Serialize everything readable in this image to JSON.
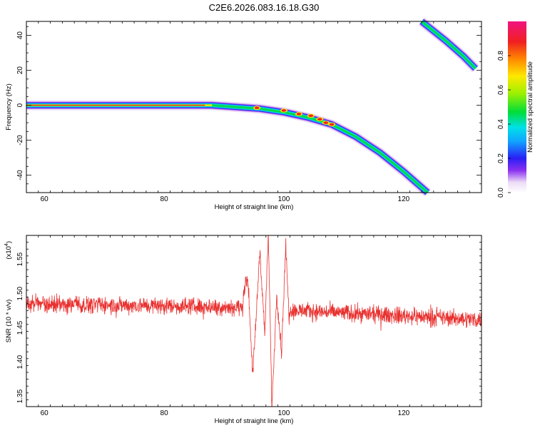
{
  "chart_data": [
    {
      "type": "heatmap",
      "title": "C2E6.2026.083.16.18.G30",
      "xlabel": "Height of straight line (km)",
      "ylabel": "Frequency (Hz)",
      "xlim": [
        57,
        133
      ],
      "ylim": [
        -50,
        48
      ],
      "xticks": [
        60,
        80,
        100,
        120
      ],
      "yticks": [
        -40,
        -20,
        0,
        20,
        40
      ],
      "colorbar": {
        "label": "Normalized spectral amplitude",
        "range": [
          0,
          1
        ],
        "ticks": [
          "0.0",
          "0.2",
          "0.4",
          "0.6",
          "0.8"
        ],
        "tick_values": [
          0,
          0.2,
          0.4,
          0.6,
          0.8
        ]
      },
      "ridges": [
        {
          "name": "main-trace",
          "points": [
            [
              57,
              0
            ],
            [
              88,
              0
            ],
            [
              92,
              -1
            ],
            [
              96,
              -2
            ],
            [
              100,
              -4
            ],
            [
              104,
              -7
            ],
            [
              108,
              -11
            ],
            [
              112,
              -18
            ],
            [
              116,
              -27
            ],
            [
              120,
              -38
            ],
            [
              124,
              -50
            ]
          ]
        },
        {
          "name": "aliased-trace",
          "points": [
            [
              123,
              48
            ],
            [
              127,
              37
            ],
            [
              130,
              28
            ],
            [
              132,
              21
            ]
          ]
        }
      ],
      "peaks": [
        [
          79,
          0
        ],
        [
          95.5,
          -1.5
        ],
        [
          100,
          -3
        ],
        [
          102.5,
          -5
        ],
        [
          104.5,
          -6
        ],
        [
          106,
          -8
        ],
        [
          107,
          -10
        ],
        [
          108,
          -11
        ]
      ]
    },
    {
      "type": "line",
      "title": "",
      "xlabel": "Height of straight line (km)",
      "ylabel": "SNR (10 * v/v)",
      "yscale_label": "(x10",
      "yscale_exp": "4",
      "yscale_close": ")",
      "xlim": [
        57,
        133
      ],
      "ylim": [
        1.335,
        1.585
      ],
      "xticks": [
        60,
        80,
        100,
        120
      ],
      "yticks": [
        "1.35",
        "1.40",
        "1.45",
        "1.50",
        "1.55"
      ],
      "ytick_values": [
        1.35,
        1.4,
        1.45,
        1.5,
        1.55
      ],
      "series": [
        {
          "name": "SNR",
          "color": "#e8312f",
          "baseline": [
            [
              57,
              1.485
            ],
            [
              90,
              1.481
            ],
            [
              105,
              1.474
            ],
            [
              133,
              1.462
            ]
          ],
          "noise": 0.011,
          "events": [
            [
              93.2,
              1.505
            ],
            [
              94,
              1.52
            ],
            [
              94.8,
              1.38
            ],
            [
              96,
              1.565
            ],
            [
              96.8,
              1.44
            ],
            [
              97.4,
              1.585
            ],
            [
              98,
              1.335
            ],
            [
              98.8,
              1.5
            ],
            [
              99.6,
              1.415
            ],
            [
              100.3,
              1.57
            ],
            [
              100.9,
              1.46
            ]
          ]
        }
      ]
    }
  ]
}
